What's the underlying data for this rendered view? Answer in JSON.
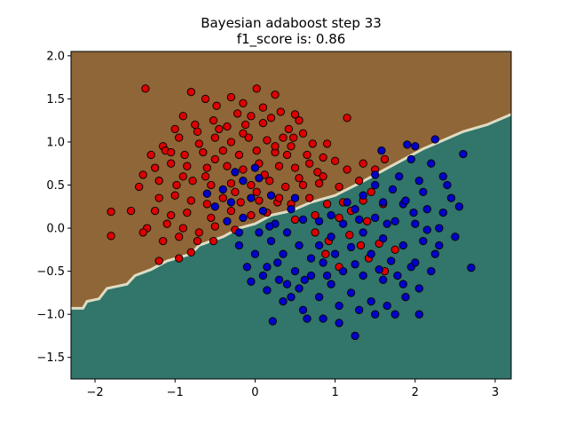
{
  "chart_data": {
    "type": "scatter",
    "title": "Bayesian adaboost step 33",
    "subtitle": "f1_score is: 0.86",
    "xlabel": "",
    "ylabel": "",
    "xlim": [
      -2.3,
      3.2
    ],
    "ylim": [
      -1.75,
      2.05
    ],
    "xticks": [
      -2,
      -1,
      0,
      1,
      2,
      3
    ],
    "yticks": [
      -1.5,
      -1.0,
      -0.5,
      0.0,
      0.5,
      1.0,
      1.5,
      2.0
    ],
    "xtick_labels": [
      "−2",
      "−1",
      "0",
      "1",
      "2",
      "3"
    ],
    "ytick_labels": [
      "−1.5",
      "−1.0",
      "−0.5",
      "0.0",
      "0.5",
      "1.0",
      "1.5",
      "2.0"
    ],
    "grid": false,
    "background_regions": {
      "upper_color": "#8f6637",
      "lower_color": "#32756a",
      "boundary_color": "#f4f0d8",
      "boundary": [
        [
          -2.3,
          -0.93
        ],
        [
          -2.15,
          -0.93
        ],
        [
          -2.1,
          -0.85
        ],
        [
          -1.95,
          -0.82
        ],
        [
          -1.85,
          -0.7
        ],
        [
          -1.6,
          -0.65
        ],
        [
          -1.5,
          -0.55
        ],
        [
          -1.3,
          -0.48
        ],
        [
          -1.1,
          -0.38
        ],
        [
          -0.8,
          -0.3
        ],
        [
          -0.7,
          -0.2
        ],
        [
          -0.4,
          -0.1
        ],
        [
          -0.2,
          0.0
        ],
        [
          0.0,
          0.05
        ],
        [
          0.2,
          0.15
        ],
        [
          0.45,
          0.2
        ],
        [
          0.7,
          0.3
        ],
        [
          1.0,
          0.38
        ],
        [
          1.3,
          0.52
        ],
        [
          1.5,
          0.62
        ],
        [
          1.7,
          0.72
        ],
        [
          1.9,
          0.82
        ],
        [
          2.1,
          0.92
        ],
        [
          2.3,
          1.0
        ],
        [
          2.6,
          1.12
        ],
        [
          2.9,
          1.2
        ],
        [
          3.2,
          1.32
        ]
      ]
    },
    "series": [
      {
        "color": "#dd0000",
        "points": [
          [
            -1.37,
            1.62
          ],
          [
            0.02,
            1.62
          ],
          [
            -0.8,
            1.58
          ],
          [
            -0.62,
            1.5
          ],
          [
            -0.3,
            1.52
          ],
          [
            0.25,
            1.55
          ],
          [
            -0.48,
            1.42
          ],
          [
            -0.15,
            1.45
          ],
          [
            0.1,
            1.4
          ],
          [
            0.5,
            1.32
          ],
          [
            -0.22,
            1.33
          ],
          [
            -0.9,
            1.3
          ],
          [
            -0.05,
            1.3
          ],
          [
            0.32,
            1.35
          ],
          [
            1.15,
            1.28
          ],
          [
            -1.0,
            1.15
          ],
          [
            -0.75,
            1.2
          ],
          [
            -0.52,
            1.25
          ],
          [
            -0.35,
            1.18
          ],
          [
            -0.12,
            1.2
          ],
          [
            0.1,
            1.22
          ],
          [
            0.42,
            1.15
          ],
          [
            0.55,
            1.25
          ],
          [
            -1.15,
            0.95
          ],
          [
            -0.95,
            1.05
          ],
          [
            -0.7,
            0.98
          ],
          [
            -0.5,
            1.05
          ],
          [
            -0.3,
            1.0
          ],
          [
            -0.08,
            1.05
          ],
          [
            0.15,
            1.02
          ],
          [
            0.35,
            1.05
          ],
          [
            0.6,
            1.1
          ],
          [
            0.72,
            0.98
          ],
          [
            -1.3,
            0.85
          ],
          [
            -1.12,
            0.9
          ],
          [
            -0.88,
            0.85
          ],
          [
            -0.65,
            0.88
          ],
          [
            -0.4,
            0.9
          ],
          [
            -0.2,
            0.85
          ],
          [
            0.02,
            0.9
          ],
          [
            0.25,
            0.88
          ],
          [
            0.45,
            0.95
          ],
          [
            0.65,
            0.85
          ],
          [
            0.85,
            0.82
          ],
          [
            1.0,
            0.78
          ],
          [
            -1.4,
            0.62
          ],
          [
            -1.25,
            0.7
          ],
          [
            -1.05,
            0.75
          ],
          [
            -0.85,
            0.72
          ],
          [
            -0.6,
            0.7
          ],
          [
            -0.35,
            0.72
          ],
          [
            -0.15,
            0.68
          ],
          [
            0.05,
            0.75
          ],
          [
            0.3,
            0.72
          ],
          [
            0.5,
            0.7
          ],
          [
            0.78,
            0.65
          ],
          [
            1.35,
            0.75
          ],
          [
            1.5,
            0.68
          ],
          [
            1.62,
            0.8
          ],
          [
            -1.45,
            0.48
          ],
          [
            -1.2,
            0.55
          ],
          [
            -0.98,
            0.5
          ],
          [
            -0.78,
            0.55
          ],
          [
            -0.55,
            0.5
          ],
          [
            -0.3,
            0.52
          ],
          [
            -0.05,
            0.5
          ],
          [
            0.18,
            0.55
          ],
          [
            0.38,
            0.48
          ],
          [
            0.6,
            0.5
          ],
          [
            0.8,
            0.52
          ],
          [
            1.05,
            0.48
          ],
          [
            1.3,
            0.55
          ],
          [
            1.45,
            0.42
          ],
          [
            -1.2,
            0.35
          ],
          [
            -1.0,
            0.38
          ],
          [
            -0.8,
            0.32
          ],
          [
            -0.6,
            0.28
          ],
          [
            -0.4,
            0.35
          ],
          [
            -0.18,
            0.3
          ],
          [
            0.05,
            0.32
          ],
          [
            0.28,
            0.3
          ],
          [
            0.45,
            0.28
          ],
          [
            0.68,
            0.35
          ],
          [
            0.9,
            0.28
          ],
          [
            1.1,
            0.3
          ],
          [
            1.35,
            0.32
          ],
          [
            1.6,
            0.28
          ],
          [
            -1.8,
            0.19
          ],
          [
            -1.55,
            0.2
          ],
          [
            -1.25,
            0.2
          ],
          [
            -1.05,
            0.15
          ],
          [
            -0.85,
            0.18
          ],
          [
            -0.55,
            0.12
          ],
          [
            -0.3,
            0.2
          ],
          [
            -0.05,
            0.15
          ],
          [
            0.15,
            0.18
          ],
          [
            0.5,
            0.1
          ],
          [
            0.75,
            0.15
          ],
          [
            1.05,
            0.12
          ],
          [
            1.2,
            0.2
          ],
          [
            1.4,
            0.08
          ],
          [
            -1.35,
            0.0
          ],
          [
            -1.1,
            0.05
          ],
          [
            -0.9,
            0.0
          ],
          [
            -0.7,
            -0.05
          ],
          [
            -0.5,
            0.02
          ],
          [
            -0.25,
            -0.02
          ],
          [
            -1.8,
            -0.09
          ],
          [
            -1.4,
            -0.05
          ],
          [
            -1.15,
            -0.15
          ],
          [
            -0.95,
            -0.1
          ],
          [
            -0.72,
            -0.15
          ],
          [
            -0.52,
            -0.15
          ],
          [
            -1.2,
            -0.38
          ],
          [
            -0.95,
            -0.35
          ],
          [
            -0.8,
            -0.28
          ],
          [
            0.75,
            -0.05
          ],
          [
            0.92,
            -0.15
          ],
          [
            1.18,
            -0.08
          ],
          [
            1.32,
            -0.2
          ],
          [
            0.88,
            -0.3
          ],
          [
            1.05,
            -0.45
          ],
          [
            1.55,
            -0.18
          ],
          [
            1.75,
            -0.25
          ],
          [
            1.62,
            -0.5
          ],
          [
            1.42,
            -0.35
          ],
          [
            0.25,
            0.95
          ],
          [
            0.4,
            0.85
          ],
          [
            -0.45,
            1.15
          ],
          [
            -0.62,
            0.6
          ],
          [
            0.12,
            0.62
          ],
          [
            0.55,
            0.58
          ],
          [
            -0.9,
            0.6
          ],
          [
            0.3,
            0.35
          ],
          [
            -0.25,
            0.42
          ],
          [
            0.68,
            0.75
          ],
          [
            0.9,
            0.98
          ],
          [
            -0.72,
            1.12
          ],
          [
            -0.15,
            1.1
          ],
          [
            0.2,
            1.28
          ],
          [
            0.48,
            1.05
          ],
          [
            -1.05,
            0.88
          ],
          [
            0.02,
            0.42
          ],
          [
            -0.5,
            0.8
          ],
          [
            0.85,
            0.6
          ],
          [
            1.15,
            0.68
          ]
        ]
      },
      {
        "color": "#0000cc",
        "points": [
          [
            1.9,
            0.97
          ],
          [
            2.25,
            1.03
          ],
          [
            2.6,
            0.86
          ],
          [
            1.58,
            0.9
          ],
          [
            1.95,
            0.8
          ],
          [
            2.2,
            0.75
          ],
          [
            1.8,
            0.6
          ],
          [
            2.05,
            0.55
          ],
          [
            2.4,
            0.5
          ],
          [
            1.5,
            0.5
          ],
          [
            1.72,
            0.45
          ],
          [
            2.1,
            0.42
          ],
          [
            2.45,
            0.35
          ],
          [
            1.35,
            0.38
          ],
          [
            1.6,
            0.3
          ],
          [
            1.85,
            0.28
          ],
          [
            2.15,
            0.22
          ],
          [
            2.35,
            0.18
          ],
          [
            1.25,
            0.22
          ],
          [
            1.5,
            0.12
          ],
          [
            1.75,
            0.08
          ],
          [
            2.0,
            0.05
          ],
          [
            2.3,
            0.0
          ],
          [
            2.5,
            -0.1
          ],
          [
            1.1,
            0.05
          ],
          [
            1.35,
            -0.05
          ],
          [
            1.6,
            -0.12
          ],
          [
            1.85,
            -0.2
          ],
          [
            2.1,
            -0.15
          ],
          [
            2.25,
            -0.3
          ],
          [
            0.95,
            -0.1
          ],
          [
            1.2,
            -0.22
          ],
          [
            1.45,
            -0.3
          ],
          [
            1.7,
            -0.38
          ],
          [
            1.95,
            -0.45
          ],
          [
            2.2,
            -0.5
          ],
          [
            0.85,
            -0.4
          ],
          [
            1.1,
            -0.5
          ],
          [
            1.35,
            -0.55
          ],
          [
            1.6,
            -0.6
          ],
          [
            1.85,
            -0.65
          ],
          [
            2.05,
            -0.7
          ],
          [
            2.7,
            -0.46
          ],
          [
            0.7,
            -0.55
          ],
          [
            0.95,
            -0.65
          ],
          [
            1.2,
            -0.75
          ],
          [
            1.45,
            -0.85
          ],
          [
            1.65,
            -0.9
          ],
          [
            1.88,
            -0.8
          ],
          [
            0.55,
            -0.7
          ],
          [
            0.8,
            -0.8
          ],
          [
            1.05,
            -0.9
          ],
          [
            1.3,
            -0.95
          ],
          [
            1.5,
            -1.0
          ],
          [
            1.75,
            -1.0
          ],
          [
            2.05,
            -1.0
          ],
          [
            1.25,
            -1.25
          ],
          [
            0.35,
            -0.85
          ],
          [
            0.6,
            -0.95
          ],
          [
            0.85,
            -1.05
          ],
          [
            1.05,
            -1.1
          ],
          [
            0.3,
            -0.6
          ],
          [
            0.5,
            -0.5
          ],
          [
            0.7,
            -0.35
          ],
          [
            0.15,
            -0.45
          ],
          [
            0.35,
            -0.3
          ],
          [
            0.55,
            -0.2
          ],
          [
            0.0,
            -0.3
          ],
          [
            0.2,
            -0.15
          ],
          [
            0.4,
            -0.05
          ],
          [
            -0.2,
            -0.2
          ],
          [
            0.05,
            -0.05
          ],
          [
            0.25,
            0.05
          ],
          [
            -0.35,
            0.08
          ],
          [
            -0.15,
            0.12
          ],
          [
            0.1,
            0.2
          ],
          [
            -0.5,
            0.25
          ],
          [
            -0.3,
            0.3
          ],
          [
            -0.05,
            0.35
          ],
          [
            0.2,
            0.38
          ],
          [
            -0.6,
            0.4
          ],
          [
            -0.4,
            0.45
          ],
          [
            -0.15,
            0.55
          ],
          [
            0.05,
            0.58
          ],
          [
            -0.25,
            0.65
          ],
          [
            0.0,
            0.7
          ],
          [
            0.18,
            0.02
          ],
          [
            -0.05,
            -0.62
          ],
          [
            0.15,
            -0.72
          ],
          [
            0.45,
            -0.8
          ],
          [
            0.65,
            -1.05
          ],
          [
            0.22,
            -1.08
          ],
          [
            1.5,
            0.62
          ],
          [
            1.88,
            0.32
          ],
          [
            2.0,
            0.95
          ],
          [
            2.35,
            0.6
          ],
          [
            1.65,
            0.05
          ],
          [
            0.95,
            0.15
          ],
          [
            1.15,
            0.3
          ],
          [
            1.3,
            0.1
          ],
          [
            0.8,
            0.08
          ],
          [
            0.6,
            0.1
          ],
          [
            0.45,
            0.22
          ],
          [
            0.9,
            -0.55
          ],
          [
            0.62,
            -0.6
          ],
          [
            0.4,
            -0.65
          ],
          [
            1.0,
            -0.3
          ],
          [
            1.25,
            -0.42
          ],
          [
            1.55,
            -0.48
          ],
          [
            1.78,
            -0.55
          ],
          [
            2.0,
            -0.4
          ],
          [
            0.28,
            -0.4
          ],
          [
            0.1,
            -0.55
          ],
          [
            -0.1,
            -0.45
          ],
          [
            -0.2,
            -0.05
          ],
          [
            0.8,
            -0.2
          ],
          [
            0.5,
            0.35
          ],
          [
            2.3,
            -0.2
          ],
          [
            2.55,
            0.25
          ],
          [
            2.15,
            -0.02
          ],
          [
            1.98,
            0.18
          ]
        ]
      }
    ]
  }
}
